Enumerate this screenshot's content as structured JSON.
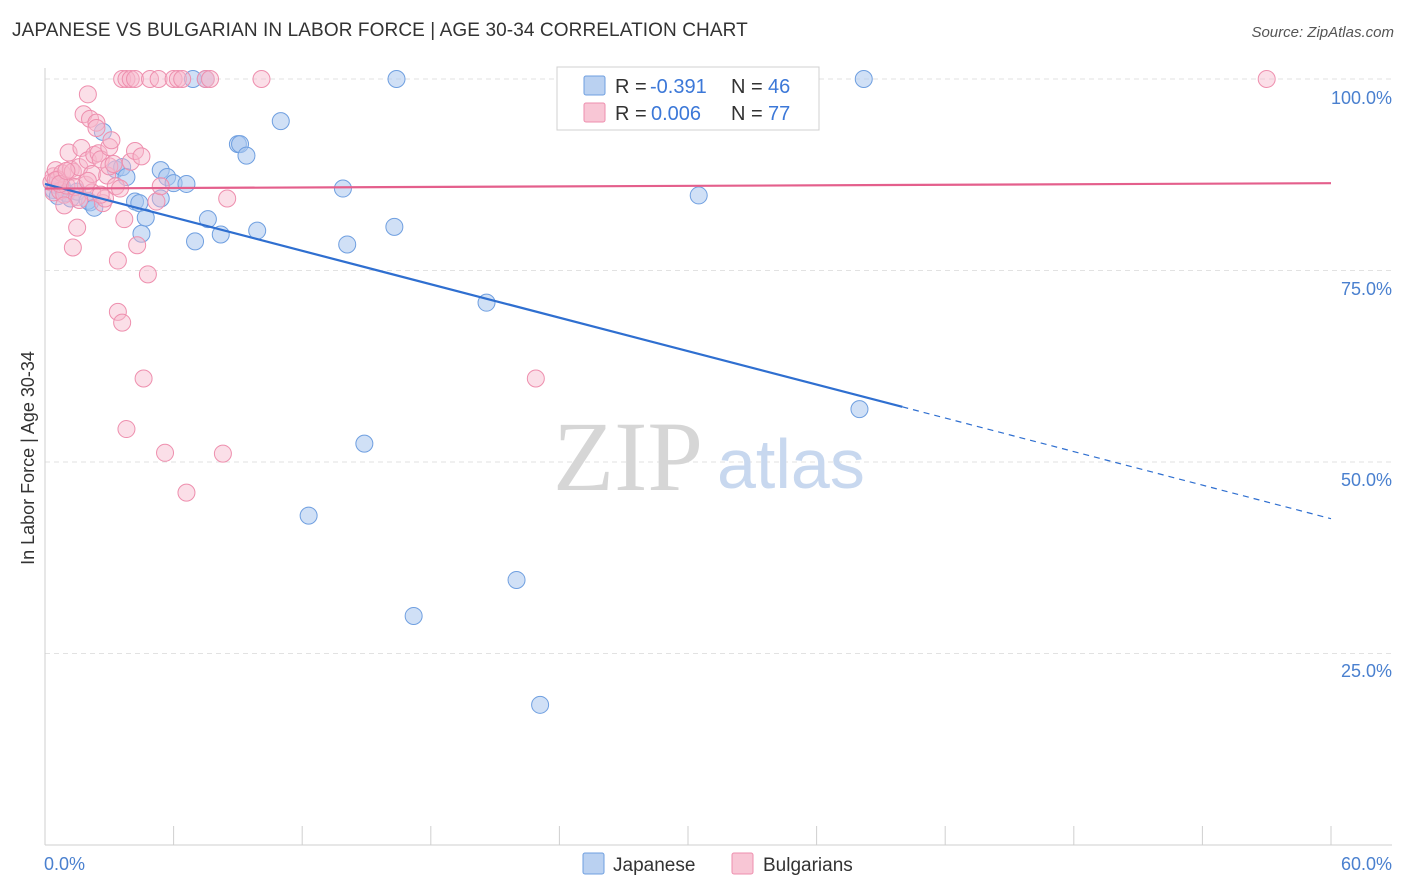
{
  "title": "JAPANESE VS BULGARIAN IN LABOR FORCE | AGE 30-34 CORRELATION CHART",
  "source": "Source: ZipAtlas.com",
  "watermark": {
    "zip": "ZIP",
    "atlas": "atlas"
  },
  "colors": {
    "japanese_fill": "#a9c6ee",
    "japanese_stroke": "#6f9fe0",
    "japanese_line": "#2f6fd0",
    "bulgarian_fill": "#f6b8cb",
    "bulgarian_stroke": "#ee8fae",
    "bulgarian_line": "#e45f8c",
    "grid": "#e2e2e2",
    "tick_label": "#4a80cf"
  },
  "legend": {
    "rows": [
      {
        "r_label": "R = ",
        "r_value": "-0.391",
        "n_label": "N = ",
        "n_value": "46"
      },
      {
        "r_label": "R = ",
        "r_value": "0.006",
        "n_label": "N = ",
        "n_value": "77"
      }
    ]
  },
  "chart_data": {
    "type": "scatter",
    "title": "JAPANESE VS BULGARIAN IN LABOR FORCE | AGE 30-34 CORRELATION CHART",
    "xlabel": "",
    "ylabel": "In Labor Force | Age 30-34",
    "xlim": [
      0,
      60
    ],
    "ylim": [
      0,
      100
    ],
    "x_tick_labels": [
      "0.0%",
      "60.0%"
    ],
    "y_tick_labels": [
      "100.0%",
      "75.0%",
      "50.0%",
      "25.0%"
    ],
    "y_ticks": [
      100,
      75,
      50,
      25
    ],
    "grid": true,
    "legend_position": "top-center",
    "series": [
      {
        "name": "Japanese",
        "trend": {
          "r": -0.391,
          "n": 46,
          "x_start": 0,
          "y_start": 86.3,
          "x_end": 40,
          "y_end": 57.2,
          "dash_to_x": 60,
          "dash_to_y": 42.6
        },
        "points": [
          [
            0.4,
            85.5
          ],
          [
            0.5,
            86.2
          ],
          [
            0.6,
            84.7
          ],
          [
            0.8,
            85.9
          ],
          [
            1.0,
            85.1
          ],
          [
            1.2,
            84.4
          ],
          [
            1.5,
            85.3
          ],
          [
            2.1,
            83.9
          ],
          [
            2.0,
            84.1
          ],
          [
            2.3,
            83.2
          ],
          [
            2.7,
            93.1
          ],
          [
            3.3,
            88.2
          ],
          [
            3.6,
            88.5
          ],
          [
            3.8,
            87.2
          ],
          [
            4.2,
            84.0
          ],
          [
            4.4,
            83.8
          ],
          [
            4.5,
            79.8
          ],
          [
            4.7,
            81.9
          ],
          [
            5.4,
            88.1
          ],
          [
            5.7,
            87.2
          ],
          [
            6.0,
            86.4
          ],
          [
            6.6,
            86.3
          ],
          [
            5.4,
            84.4
          ],
          [
            7.0,
            78.8
          ],
          [
            7.6,
            81.7
          ],
          [
            8.2,
            79.7
          ],
          [
            9.0,
            91.5
          ],
          [
            9.1,
            91.5
          ],
          [
            9.4,
            90.0
          ],
          [
            9.9,
            80.2
          ],
          [
            6.9,
            100.0
          ],
          [
            7.5,
            100.0
          ],
          [
            11.0,
            94.5
          ],
          [
            13.9,
            85.7
          ],
          [
            14.1,
            78.4
          ],
          [
            16.3,
            80.7
          ],
          [
            16.4,
            100.0
          ],
          [
            20.6,
            70.8
          ],
          [
            12.3,
            43.0
          ],
          [
            14.9,
            52.4
          ],
          [
            22.0,
            34.6
          ],
          [
            17.2,
            29.9
          ],
          [
            23.1,
            18.3
          ],
          [
            30.5,
            84.8
          ],
          [
            38.2,
            100.0
          ],
          [
            38.0,
            56.9
          ]
        ]
      },
      {
        "name": "Bulgarians",
        "trend": {
          "r": 0.006,
          "n": 77,
          "x_start": 0,
          "y_start": 85.7,
          "x_end": 60,
          "y_end": 86.4
        },
        "points": [
          [
            0.3,
            86.5
          ],
          [
            0.4,
            87.3
          ],
          [
            0.4,
            85.2
          ],
          [
            0.5,
            88.1
          ],
          [
            0.6,
            86.9
          ],
          [
            0.7,
            85.4
          ],
          [
            0.8,
            87.7
          ],
          [
            0.9,
            84.9
          ],
          [
            1.0,
            86.1
          ],
          [
            1.1,
            90.4
          ],
          [
            1.2,
            88.2
          ],
          [
            1.3,
            87.9
          ],
          [
            1.3,
            78.0
          ],
          [
            1.5,
            80.6
          ],
          [
            1.5,
            84.6
          ],
          [
            1.6,
            88.5
          ],
          [
            1.7,
            91.0
          ],
          [
            1.8,
            95.4
          ],
          [
            1.9,
            86.2
          ],
          [
            2.0,
            98.0
          ],
          [
            2.0,
            89.4
          ],
          [
            2.1,
            94.8
          ],
          [
            2.2,
            85.2
          ],
          [
            2.2,
            87.6
          ],
          [
            2.3,
            90.1
          ],
          [
            2.4,
            94.3
          ],
          [
            2.4,
            93.6
          ],
          [
            2.5,
            90.3
          ],
          [
            2.6,
            89.5
          ],
          [
            2.7,
            83.8
          ],
          [
            2.8,
            84.4
          ],
          [
            2.9,
            87.4
          ],
          [
            3.0,
            91.1
          ],
          [
            3.0,
            88.6
          ],
          [
            3.1,
            92.0
          ],
          [
            3.3,
            86.0
          ],
          [
            3.4,
            76.3
          ],
          [
            3.4,
            69.6
          ],
          [
            3.5,
            85.7
          ],
          [
            3.6,
            100.0
          ],
          [
            3.6,
            68.2
          ],
          [
            3.7,
            81.7
          ],
          [
            3.8,
            100.0
          ],
          [
            3.8,
            54.3
          ],
          [
            4.0,
            100.0
          ],
          [
            4.0,
            89.2
          ],
          [
            4.2,
            90.6
          ],
          [
            4.2,
            100.0
          ],
          [
            4.3,
            78.3
          ],
          [
            4.5,
            89.9
          ],
          [
            4.6,
            60.9
          ],
          [
            4.8,
            74.5
          ],
          [
            4.9,
            100.0
          ],
          [
            5.2,
            84.0
          ],
          [
            5.3,
            100.0
          ],
          [
            5.4,
            86.0
          ],
          [
            5.6,
            51.2
          ],
          [
            6.0,
            100.0
          ],
          [
            6.2,
            100.0
          ],
          [
            6.4,
            100.0
          ],
          [
            6.6,
            46.0
          ],
          [
            7.5,
            100.0
          ],
          [
            7.7,
            100.0
          ],
          [
            8.3,
            51.1
          ],
          [
            8.5,
            84.4
          ],
          [
            10.1,
            100.0
          ],
          [
            22.9,
            60.9
          ],
          [
            57.0,
            100.0
          ],
          [
            0.5,
            86.8
          ],
          [
            0.7,
            86.3
          ],
          [
            1.0,
            88.0
          ],
          [
            1.4,
            85.9
          ],
          [
            1.6,
            84.2
          ],
          [
            2.0,
            86.7
          ],
          [
            2.6,
            84.9
          ],
          [
            3.2,
            88.9
          ],
          [
            0.9,
            83.5
          ]
        ]
      }
    ]
  }
}
